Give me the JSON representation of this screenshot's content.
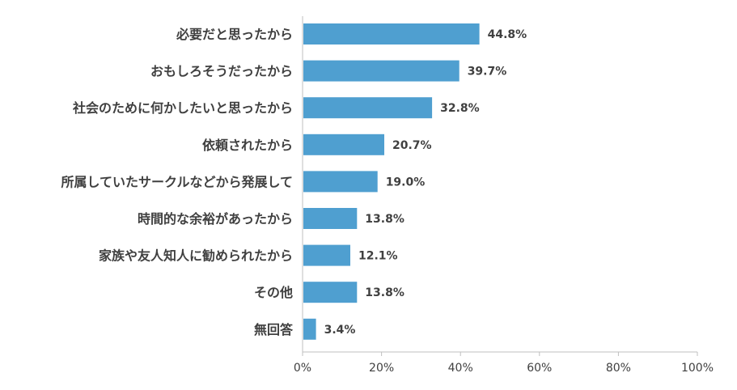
{
  "chart_data": {
    "type": "bar",
    "orientation": "horizontal",
    "categories": [
      "必要だと思ったから",
      "おもしろそうだったから",
      "社会のために何かしたいと思ったから",
      "依頼されたから",
      "所属していたサークルなどから発展して",
      "時間的な余裕があったから",
      "家族や友人知人に勧められたから",
      "その他",
      "無回答"
    ],
    "values": [
      44.8,
      39.7,
      32.8,
      20.7,
      19.0,
      13.8,
      12.1,
      13.8,
      3.4
    ],
    "value_labels": [
      "44.8%",
      "39.7%",
      "32.8%",
      "20.7%",
      "19.0%",
      "13.8%",
      "12.1%",
      "13.8%",
      "3.4%"
    ],
    "xlim": [
      0,
      100
    ],
    "x_ticks": [
      0,
      20,
      40,
      60,
      80,
      100
    ],
    "x_tick_labels": [
      "0%",
      "20%",
      "40%",
      "60%",
      "80%",
      "100%"
    ],
    "bar_color": "#4f9fd0",
    "axis_color": "#bfbfbf",
    "text_color": "#404040",
    "grid": false,
    "legend": false
  }
}
